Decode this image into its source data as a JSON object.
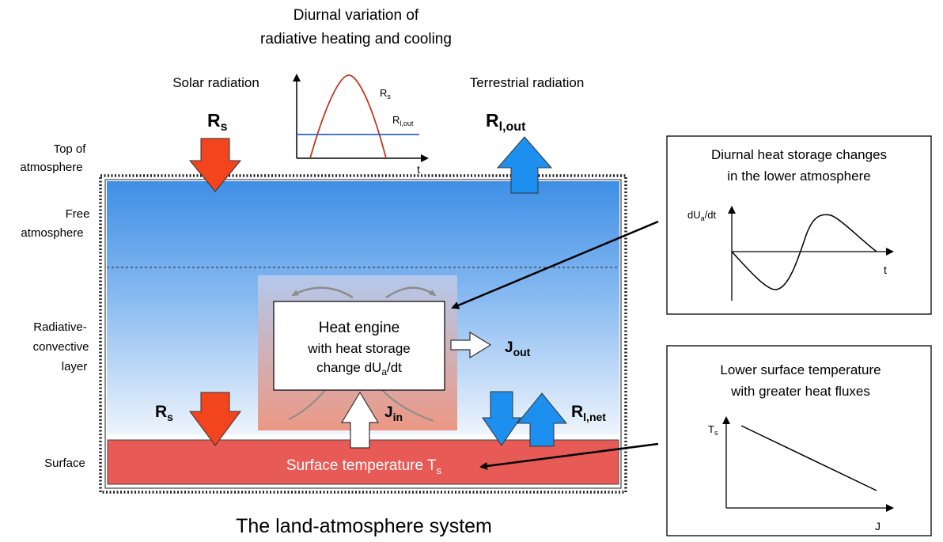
{
  "header": {
    "title_line1": "Diurnal variation of",
    "title_line2": "radiative heating and cooling"
  },
  "top_labels": {
    "solar_radiation": "Solar radiation",
    "terrestrial_radiation": "Terrestrial radiation",
    "rs_main": "R",
    "rs_main_sub": "s",
    "rl_out_main": "R",
    "rl_out_main_sub": "l,out"
  },
  "inset_radiation": {
    "rs_label": "R",
    "rs_sub": "s",
    "rl_label": "R",
    "rl_sub": "l,out",
    "t_label": "t"
  },
  "left_labels": {
    "toa_line1": "Top of",
    "toa_line2": "atmosphere",
    "free_line1": "Free",
    "free_line2": "atmosphere",
    "rc_line1": "Radiative-",
    "rc_line2": "convective",
    "rc_line3": "layer",
    "surface": "Surface"
  },
  "heat_engine": {
    "line1": "Heat engine",
    "line2": "with heat storage",
    "line3_a": "change dU",
    "line3_sub": "a",
    "line3_b": "/dt"
  },
  "fluxes": {
    "j_out": "J",
    "j_out_sub": "out",
    "j_in": "J",
    "j_in_sub": "in",
    "rs_lower": "R",
    "rs_lower_sub": "s",
    "rl_net": "R",
    "rl_net_sub": "l,net"
  },
  "surface_bar": {
    "label": "Surface temperature T",
    "label_sub": "s"
  },
  "bottom_title": "The land-atmosphere system",
  "panel_storage": {
    "title_line1": "Diurnal heat storage changes",
    "title_line2": "in the lower atmosphere",
    "ylabel": "dU",
    "ylabel_sub": "a",
    "ylabel_tail": "/dt",
    "xlabel": "t"
  },
  "panel_temperature": {
    "title_line1": "Lower surface temperature",
    "title_line2": "with greater heat fluxes",
    "ylabel": "T",
    "ylabel_sub": "s",
    "xlabel": "J"
  },
  "colors": {
    "solar_arrow": "#f2441d",
    "terrestrial_arrow": "#1c8fef",
    "surface_bar": "#e85a55",
    "atmosphere_top": "#3f8fe6",
    "atmosphere_bottom": "#eef4fc",
    "rs_curve": "#c0381f",
    "rl_line": "#2a62c8"
  }
}
